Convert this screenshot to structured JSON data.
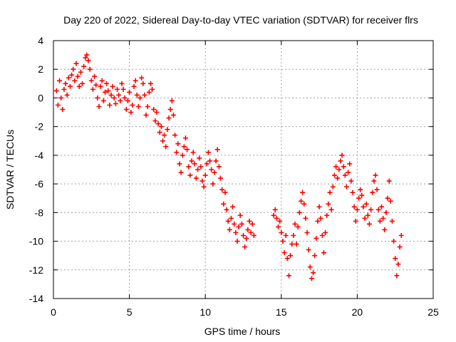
{
  "chart_data": {
    "type": "scatter",
    "title": "Day 220 of 2022, Sidereal Day-to-day VTEC variation (SDTVAR) for receiver flrs",
    "xlabel": "GPS time / hours",
    "ylabel": "SDTVAR / TECUs",
    "xlim": [
      0,
      25
    ],
    "ylim": [
      -14,
      4
    ],
    "xticks": [
      0,
      5,
      10,
      15,
      20,
      25
    ],
    "yticks": [
      4,
      2,
      0,
      -2,
      -4,
      -6,
      -8,
      -10,
      -12,
      -14
    ],
    "grid": true,
    "marker": "+",
    "series": [
      {
        "name": "SDTVAR",
        "color": "#ff0000",
        "x": [
          0.2,
          0.3,
          0.4,
          0.5,
          0.6,
          0.7,
          0.8,
          0.9,
          1.0,
          1.1,
          1.2,
          1.3,
          1.4,
          1.5,
          1.6,
          1.7,
          1.8,
          1.9,
          2.0,
          2.1,
          2.2,
          2.3,
          2.4,
          2.5,
          2.6,
          2.7,
          2.8,
          2.9,
          3.0,
          3.1,
          3.2,
          3.3,
          3.4,
          3.5,
          3.6,
          3.7,
          3.8,
          3.9,
          4.0,
          4.1,
          4.2,
          4.3,
          4.4,
          4.5,
          4.6,
          4.7,
          4.8,
          4.9,
          5.0,
          5.1,
          5.2,
          5.3,
          5.4,
          5.5,
          5.6,
          5.7,
          5.8,
          5.9,
          6.0,
          6.1,
          6.2,
          6.3,
          6.4,
          6.5,
          6.6,
          6.7,
          6.8,
          6.9,
          7.0,
          7.1,
          7.2,
          7.3,
          7.4,
          7.5,
          7.6,
          7.7,
          7.8,
          7.9,
          8.0,
          8.1,
          8.2,
          8.3,
          8.4,
          8.5,
          8.6,
          8.7,
          8.8,
          8.9,
          9.0,
          9.1,
          9.2,
          9.3,
          9.4,
          9.5,
          9.6,
          9.7,
          9.8,
          9.9,
          10.0,
          10.1,
          10.2,
          10.3,
          10.4,
          10.5,
          10.6,
          10.7,
          10.8,
          10.9,
          11.0,
          11.1,
          11.2,
          11.3,
          11.4,
          11.5,
          11.6,
          11.7,
          11.8,
          11.9,
          12.0,
          12.1,
          12.2,
          12.3,
          12.4,
          12.5,
          12.6,
          12.7,
          12.8,
          12.9,
          13.0,
          13.1,
          13.2,
          14.5,
          14.6,
          14.7,
          14.8,
          14.9,
          15.0,
          15.1,
          15.2,
          15.3,
          15.4,
          15.5,
          15.6,
          15.7,
          15.8,
          15.9,
          16.0,
          16.1,
          16.2,
          16.3,
          16.4,
          16.5,
          16.6,
          16.7,
          16.8,
          16.9,
          17.0,
          17.1,
          17.2,
          17.3,
          17.4,
          17.5,
          17.6,
          17.7,
          17.8,
          17.9,
          18.0,
          18.1,
          18.2,
          18.3,
          18.4,
          18.5,
          18.6,
          18.7,
          18.8,
          18.9,
          19.0,
          19.1,
          19.2,
          19.3,
          19.4,
          19.5,
          19.6,
          19.7,
          19.8,
          19.9,
          20.0,
          20.1,
          20.2,
          20.3,
          20.4,
          20.5,
          20.6,
          20.7,
          20.8,
          20.9,
          21.0,
          21.1,
          21.2,
          21.3,
          21.4,
          21.5,
          21.6,
          21.7,
          21.8,
          21.9,
          22.0,
          22.1,
          22.2,
          22.3,
          22.4,
          22.5,
          22.6,
          22.7,
          22.8,
          22.9
        ],
        "y": [
          0.5,
          -0.5,
          1.2,
          0.0,
          -0.8,
          0.6,
          1.0,
          0.2,
          1.4,
          0.8,
          1.6,
          2.0,
          1.2,
          2.4,
          1.5,
          0.8,
          1.8,
          1.0,
          2.2,
          2.8,
          3.0,
          2.6,
          2.0,
          1.2,
          0.6,
          1.5,
          0.9,
          0.0,
          -0.6,
          0.8,
          1.2,
          -0.2,
          0.4,
          1.0,
          0.5,
          -0.5,
          0.2,
          0.8,
          0.0,
          -0.4,
          0.6,
          0.2,
          -0.2,
          1.0,
          0.6,
          0.0,
          -0.8,
          -0.2,
          0.4,
          -1.0,
          -0.5,
          0.8,
          1.2,
          0.2,
          -0.6,
          0.0,
          1.4,
          1.0,
          0.2,
          -1.2,
          -0.6,
          0.4,
          1.0,
          0.6,
          -0.8,
          -1.6,
          -1.0,
          -1.8,
          -2.4,
          -2.0,
          -3.0,
          -2.6,
          -3.4,
          -2.2,
          -1.4,
          -0.8,
          -0.2,
          -1.2,
          -2.6,
          -3.8,
          -3.2,
          -4.6,
          -5.2,
          -4.0,
          -3.4,
          -2.8,
          -3.6,
          -4.8,
          -5.4,
          -4.4,
          -3.8,
          -4.6,
          -5.6,
          -5.0,
          -4.2,
          -4.8,
          -5.8,
          -6.2,
          -5.4,
          -4.6,
          -3.8,
          -4.4,
          -5.0,
          -6.0,
          -5.2,
          -4.4,
          -3.6,
          -4.8,
          -5.6,
          -6.4,
          -7.4,
          -6.6,
          -7.8,
          -8.6,
          -9.2,
          -8.4,
          -7.6,
          -8.8,
          -9.4,
          -10.0,
          -9.0,
          -8.2,
          -8.8,
          -9.6,
          -10.4,
          -9.8,
          -9.2,
          -8.6,
          -9.4,
          -8.8,
          -9.6,
          -8.2,
          -7.8,
          -8.4,
          -9.0,
          -8.6,
          -9.4,
          -10.0,
          -10.8,
          -9.6,
          -11.2,
          -12.4,
          -11.0,
          -10.2,
          -9.6,
          -8.8,
          -10.2,
          -9.0,
          -8.0,
          -7.2,
          -6.6,
          -7.4,
          -8.4,
          -9.4,
          -10.6,
          -11.8,
          -12.6,
          -12.2,
          -11.0,
          -9.8,
          -8.6,
          -7.6,
          -8.4,
          -9.6,
          -10.8,
          -9.4,
          -8.2,
          -7.4,
          -6.6,
          -7.8,
          -6.2,
          -5.4,
          -4.8,
          -5.6,
          -5.0,
          -4.4,
          -4.0,
          -4.8,
          -5.4,
          -6.2,
          -5.2,
          -4.6,
          -5.8,
          -6.6,
          -7.6,
          -8.6,
          -7.8,
          -7.0,
          -6.4,
          -6.8,
          -7.6,
          -8.4,
          -7.4,
          -8.2,
          -8.8,
          -7.8,
          -6.6,
          -5.8,
          -5.4,
          -6.4,
          -7.8,
          -8.6,
          -7.6,
          -8.4,
          -9.2,
          -8.0,
          -7.0,
          -5.8,
          -7.2,
          -8.6,
          -10.0,
          -11.2,
          -12.4,
          -11.6,
          -10.4,
          -9.6
        ]
      }
    ]
  }
}
